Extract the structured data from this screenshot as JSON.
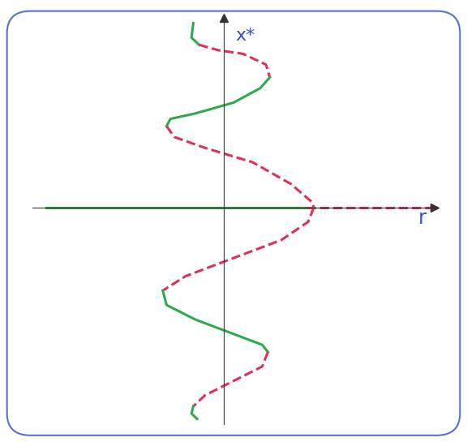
{
  "chart_data": {
    "type": "line",
    "x_label": "r",
    "y_label": "x*",
    "xlim": [
      -10,
      11
    ],
    "ylim": [
      -12,
      10.5
    ],
    "tick_labels": false,
    "grid": false,
    "series": [
      {
        "color": "#2eaa4a",
        "line_style": "solid",
        "x": [
          -9.3,
          4.3
        ],
        "values": [
          0,
          0
        ]
      },
      {
        "color": "#e0305a",
        "line_style": "dashed",
        "x": [
          4.3,
          11
        ],
        "values": [
          0,
          0
        ]
      },
      {
        "color": "#2eaa4a",
        "line_style": "solid",
        "x": [
          -1.6,
          -1.7,
          -1.3
        ],
        "values": [
          10.2,
          9.4,
          9.0
        ]
      },
      {
        "color": "#e0305a",
        "line_style": "dashed",
        "x": [
          -1.3,
          -0.3,
          1.0,
          2.2,
          2.4
        ],
        "values": [
          9.0,
          8.7,
          8.5,
          7.9,
          7.2
        ]
      },
      {
        "color": "#2eaa4a",
        "line_style": "solid",
        "x": [
          2.4,
          1.9,
          0.5,
          -1.5,
          -2.8,
          -3.0
        ],
        "values": [
          7.2,
          6.6,
          5.8,
          5.2,
          4.9,
          4.5
        ]
      },
      {
        "color": "#e0305a",
        "line_style": "dashed",
        "x": [
          -3.0,
          -2.6,
          -1.0,
          1.5,
          3.5,
          4.6,
          4.7
        ],
        "values": [
          4.5,
          3.9,
          3.3,
          2.5,
          1.3,
          0.3,
          0
        ]
      },
      {
        "color": "#e0305a",
        "line_style": "dashed",
        "x": [
          4.7,
          4.4,
          3.0,
          0.5,
          -2.0,
          -3.2
        ],
        "values": [
          0,
          -0.8,
          -1.8,
          -2.8,
          -3.8,
          -4.6
        ]
      },
      {
        "color": "#2eaa4a",
        "line_style": "solid",
        "x": [
          -3.2,
          -3.0,
          -1.5,
          0.5,
          2.0,
          2.3
        ],
        "values": [
          -4.6,
          -5.4,
          -6.2,
          -7.0,
          -7.6,
          -8.0
        ]
      },
      {
        "color": "#e0305a",
        "line_style": "dashed",
        "x": [
          2.3,
          2.0,
          0.5,
          -1.0,
          -1.6
        ],
        "values": [
          -8.0,
          -8.8,
          -9.6,
          -10.4,
          -11.0
        ]
      },
      {
        "color": "#2eaa4a",
        "line_style": "solid",
        "x": [
          -1.6,
          -1.7,
          -1.4
        ],
        "values": [
          -11.0,
          -11.4,
          -11.7
        ]
      }
    ]
  }
}
